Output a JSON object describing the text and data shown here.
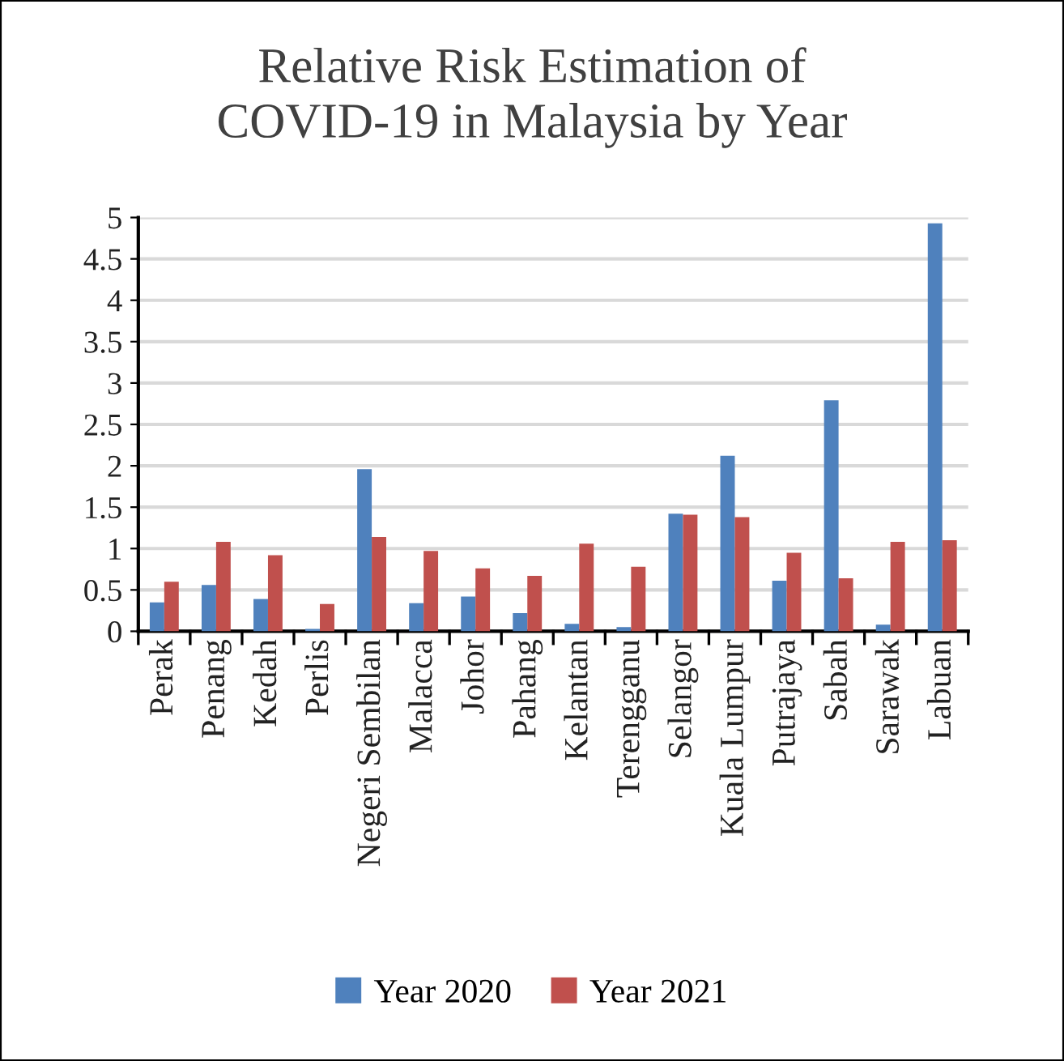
{
  "chart_data": {
    "type": "bar",
    "title": "Relative Risk Estimation of\nCOVID-19 in Malaysia by Year",
    "categories": [
      "Perak",
      "Penang",
      "Kedah",
      "Perlis",
      "Negeri Sembilan",
      "Malacca",
      "Johor",
      "Pahang",
      "Kelantan",
      "Terengganu",
      "Selangor",
      "Kuala Lumpur",
      "Putrajaya",
      "Sabah",
      "Sarawak",
      "Labuan"
    ],
    "series": [
      {
        "name": "Year 2020",
        "color": "#4f81bd",
        "values": [
          0.35,
          0.56,
          0.39,
          0.03,
          1.96,
          0.34,
          0.42,
          0.22,
          0.09,
          0.05,
          1.42,
          2.12,
          0.61,
          2.79,
          0.08,
          4.93
        ]
      },
      {
        "name": "Year 2021",
        "color": "#c0504d",
        "values": [
          0.6,
          1.08,
          0.92,
          0.33,
          1.14,
          0.97,
          0.76,
          0.67,
          1.06,
          0.78,
          1.41,
          1.38,
          0.95,
          0.64,
          1.08,
          1.1
        ]
      }
    ],
    "ylim": [
      0,
      5
    ],
    "yticks": [
      0,
      0.5,
      1,
      1.5,
      2,
      2.5,
      3,
      3.5,
      4,
      4.5,
      5
    ],
    "grid": "y",
    "legend": "bottom"
  }
}
